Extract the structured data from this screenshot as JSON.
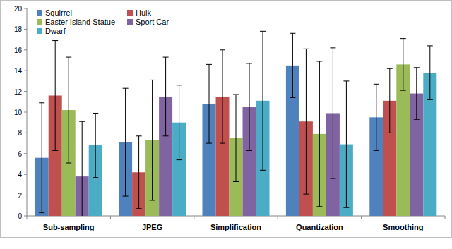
{
  "chart_data": {
    "type": "bar",
    "categories": [
      "Sub-sampling",
      "JPEG",
      "Simplification",
      "Quantization",
      "Smoothing"
    ],
    "series": [
      {
        "name": "Squirrel",
        "color": "#4f81bd",
        "values": [
          5.6,
          7.1,
          10.8,
          14.5,
          9.5
        ],
        "errors": [
          5.3,
          5.2,
          3.8,
          3.1,
          3.2
        ]
      },
      {
        "name": "Hulk",
        "color": "#c0504d",
        "values": [
          11.6,
          4.2,
          11.5,
          9.1,
          11.1
        ],
        "errors": [
          5.3,
          3.5,
          4.5,
          7.0,
          3.1
        ]
      },
      {
        "name": "Easter Island Statue",
        "color": "#9bbb59",
        "values": [
          10.2,
          7.3,
          7.5,
          7.9,
          14.6
        ],
        "errors": [
          5.1,
          5.8,
          4.2,
          7.0,
          2.5
        ]
      },
      {
        "name": "Sport Car",
        "color": "#8064a2",
        "values": [
          3.8,
          11.5,
          10.5,
          9.9,
          11.8
        ],
        "errors": [
          5.3,
          3.8,
          4.2,
          6.3,
          2.5
        ]
      },
      {
        "name": "Dwarf",
        "color": "#4bacc6",
        "values": [
          6.8,
          9.0,
          11.1,
          6.9,
          13.8
        ],
        "errors": [
          3.1,
          3.6,
          6.7,
          6.1,
          2.6
        ]
      }
    ],
    "ylim": [
      0,
      20
    ],
    "yticks": [
      0,
      2,
      4,
      6,
      8,
      10,
      12,
      14,
      16,
      18,
      20
    ],
    "grid": false,
    "legend": "top-left"
  }
}
